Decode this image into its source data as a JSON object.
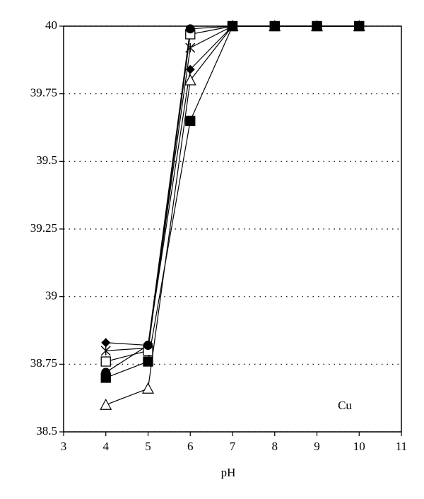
{
  "chart_data": {
    "type": "line",
    "x_label": "pH",
    "annotation": "Cu",
    "x": [
      4,
      5,
      6,
      7,
      8,
      9,
      10
    ],
    "series": [
      {
        "marker": "triangle-open",
        "color": "#000000",
        "values": [
          38.6,
          38.66,
          39.8,
          40,
          40,
          40,
          40
        ]
      },
      {
        "marker": "star",
        "color": "#000000",
        "values": [
          38.8,
          38.81,
          39.92,
          40,
          40,
          40,
          40
        ]
      },
      {
        "marker": "square-open",
        "color": "#000000",
        "values": [
          38.76,
          38.8,
          39.97,
          40,
          40,
          40,
          40
        ]
      },
      {
        "marker": "diamond-filled",
        "color": "#000000",
        "values": [
          38.83,
          38.82,
          39.84,
          40,
          40,
          40,
          40
        ]
      },
      {
        "marker": "circle-filled",
        "color": "#000000",
        "values": [
          38.72,
          38.82,
          39.99,
          40,
          40,
          40,
          40
        ]
      },
      {
        "marker": "square-filled",
        "color": "#000000",
        "values": [
          38.7,
          38.76,
          39.65,
          40,
          40,
          40,
          40
        ]
      }
    ],
    "xlim": [
      3,
      11
    ],
    "xticks": [
      3,
      4,
      5,
      6,
      7,
      8,
      9,
      10,
      11
    ],
    "ylim": [
      38.5,
      40
    ],
    "yticks": [
      38.5,
      38.75,
      39,
      39.25,
      39.5,
      39.75,
      40
    ],
    "grid": true
  }
}
